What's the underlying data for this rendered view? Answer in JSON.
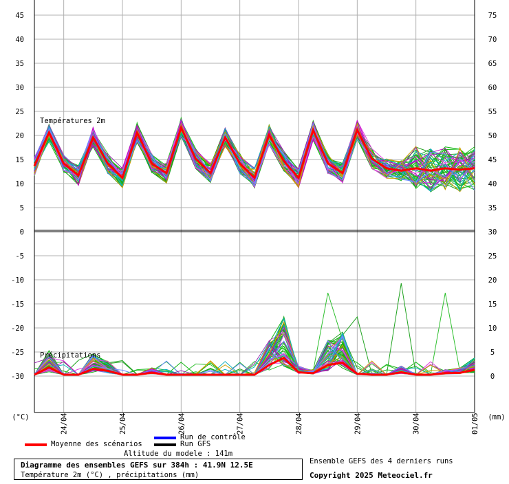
{
  "chart_data": {
    "type": "line",
    "footer": {
      "title": "Diagramme des ensembles GEFS sur 384h : 41.9N 12.5E",
      "subtitle": "Température 2m (°C) , précipitations (mm)",
      "altitude": "Altitude du modele : 141m",
      "ensemble_note": "Ensemble GEFS des 4 derniers runs",
      "copyright": "Copyright 2025 Meteociel.fr"
    },
    "legend": [
      {
        "label": "Moyenne des scénarios",
        "color": "#ff0000"
      },
      {
        "label": "Run de contrôle",
        "color": "#0000ff"
      },
      {
        "label": "Run GFS",
        "color": "#000000"
      }
    ],
    "x_axis": {
      "dates": [
        "24/04",
        "25/04",
        "26/04",
        "27/04",
        "28/04",
        "29/04",
        "30/04",
        "01/05"
      ],
      "range_days": [
        -0.75,
        6.75
      ]
    },
    "left_unit": "(°C)",
    "right_unit": "(mm)",
    "left_axis_labels": [
      "45",
      "40",
      "35",
      "30",
      "25",
      "20",
      "15",
      "10",
      "5",
      "0",
      "-5",
      "-10",
      "-15",
      "-20",
      "-25",
      "-30"
    ],
    "right_axis_labels": [
      "75",
      "70",
      "65",
      "60",
      "55",
      "50",
      "45",
      "40",
      "35",
      "30",
      "25",
      "20",
      "15",
      "10",
      "5",
      "0"
    ],
    "panels": [
      {
        "label": "Températures 2m",
        "ylim": [
          0,
          48.3
        ],
        "ylabel": "",
        "series": [
          {
            "name": "Moyenne des scénarios",
            "color": "#ff0000",
            "x": [
              -0.75,
              -0.5,
              -0.25,
              0,
              0.25,
              0.5,
              0.75,
              1,
              1.25,
              1.5,
              1.75,
              2,
              2.25,
              2.5,
              2.75,
              3,
              3.25,
              3.5,
              3.75,
              4,
              4.25,
              4.5,
              4.75,
              5,
              5.25,
              5.5,
              5.75,
              6,
              6.25,
              6.5,
              6.75
            ],
            "values": [
              13.5,
              20.5,
              14,
              11.5,
              19.5,
              14,
              11,
              20.5,
              14,
              12,
              21.5,
              15,
              12,
              19.5,
              14,
              11,
              20,
              14.5,
              11,
              21,
              14,
              12,
              21,
              15,
              13,
              12.5,
              13,
              12.5,
              13,
              12.7,
              13
            ]
          }
        ],
        "ensemble_members": 90,
        "ensemble_spread": "approx. ±2.5 °C around mean, widening after 30/04"
      },
      {
        "label": "Précipitations",
        "ylim": [
          0,
          30
        ],
        "ylabel": "",
        "series": [
          {
            "name": "Moyenne des scénarios",
            "color": "#ff0000",
            "x": [
              -0.75,
              -0.5,
              -0.25,
              0,
              0.25,
              0.5,
              0.75,
              1,
              1.25,
              1.5,
              1.75,
              2,
              2.25,
              2.5,
              2.75,
              3,
              3.25,
              3.5,
              3.75,
              4,
              4.25,
              4.5,
              4.75,
              5,
              5.25,
              5.5,
              5.75,
              6,
              6.25,
              6.5,
              6.75
            ],
            "values": [
              0,
              1.5,
              0,
              0,
              1.2,
              0.8,
              0,
              0,
              0.4,
              0,
              0,
              0,
              0,
              0,
              0,
              0,
              2,
              3.5,
              0.5,
              0.3,
              2,
              2.5,
              0.2,
              0,
              0,
              0.5,
              0,
              0,
              0.3,
              0.4,
              1
            ]
          }
        ],
        "ensemble_members": 90,
        "max_member_peak": "about 19 mm near 29/04"
      }
    ],
    "colors": {
      "ensemble": [
        "#21a321",
        "#13b713",
        "#30c030",
        "#c000c0",
        "#9b2fb0",
        "#e040e0",
        "#c9a000",
        "#10b0c0",
        "#6a8cff"
      ],
      "grid": "#b0b0b0",
      "control_run": "#0000ff",
      "gfs_run": "#000000"
    }
  }
}
